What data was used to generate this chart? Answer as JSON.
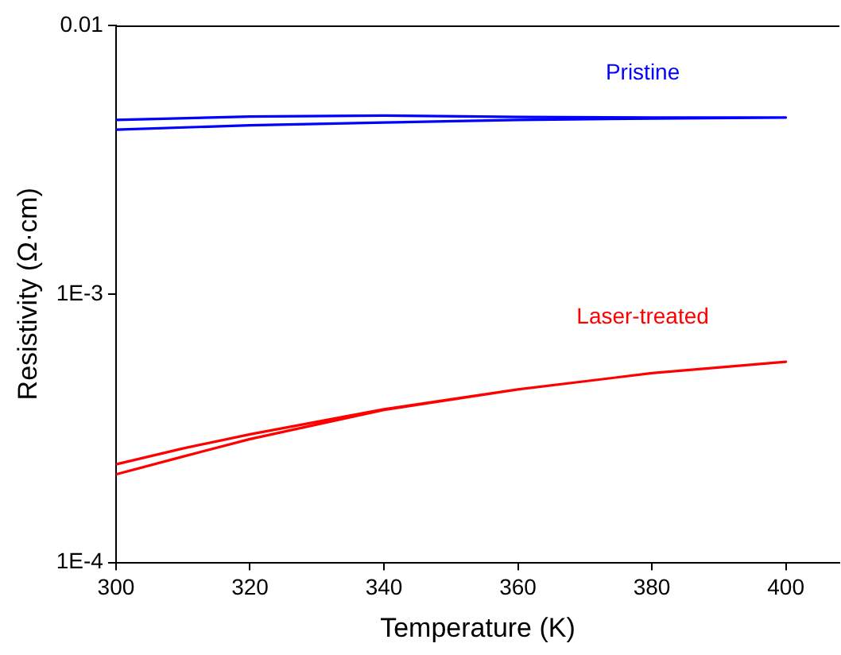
{
  "chart_data": {
    "type": "line",
    "xlabel": "Temperature (K)",
    "ylabel": "Resistivity (Ω·cm)",
    "xlim": [
      300,
      408
    ],
    "xticks": [
      300,
      320,
      340,
      360,
      380,
      400
    ],
    "ylim": [
      0.0001,
      0.01
    ],
    "yticks": [
      {
        "value": 0.0001,
        "label": "1E-4"
      },
      {
        "value": 0.001,
        "label": "1E-3"
      },
      {
        "value": 0.01,
        "label": "0.01"
      }
    ],
    "log": "y",
    "grid": false,
    "legend": false,
    "marker": "none",
    "line_style": "solid",
    "series": [
      {
        "name": "Pristine",
        "color": "#0000ff",
        "x": [
          300,
          320,
          340,
          360,
          380,
          400,
          380,
          360,
          340,
          320,
          300
        ],
        "values": [
          0.00409,
          0.00425,
          0.00435,
          0.00445,
          0.0045,
          0.00454,
          0.00454,
          0.00456,
          0.00462,
          0.00458,
          0.00445
        ]
      },
      {
        "name": "Laser-treated",
        "color": "#ff0000",
        "x": [
          300,
          310,
          320,
          340,
          360,
          380,
          400,
          380,
          360,
          340,
          320,
          310,
          300
        ],
        "values": [
          0.000213,
          0.000248,
          0.000288,
          0.00037,
          0.000441,
          0.000507,
          0.000559,
          0.000507,
          0.000441,
          0.000372,
          0.0003,
          0.000266,
          0.000232
        ]
      }
    ]
  }
}
